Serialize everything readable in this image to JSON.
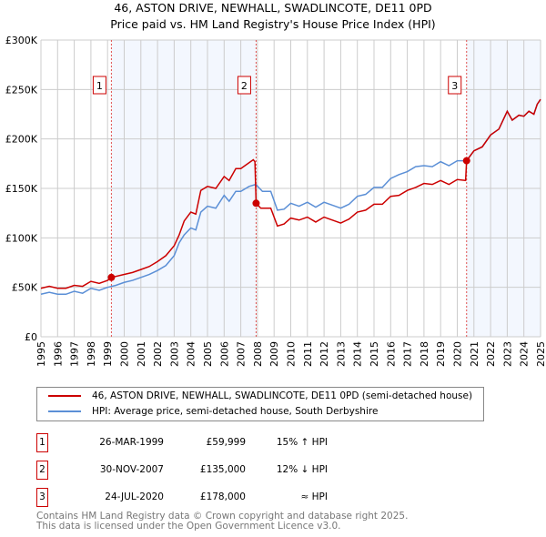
{
  "chart_data": {
    "type": "line",
    "title": "46, ASTON DRIVE, NEWHALL, SWADLINCOTE, DE11 0PD",
    "subtitle": "Price paid vs. HM Land Registry's House Price Index (HPI)",
    "xlim": [
      1995,
      2025
    ],
    "ylim": [
      0,
      300000
    ],
    "yticks": [
      {
        "v": 0,
        "label": "£0"
      },
      {
        "v": 50000,
        "label": "£50K"
      },
      {
        "v": 100000,
        "label": "£100K"
      },
      {
        "v": 150000,
        "label": "£150K"
      },
      {
        "v": 200000,
        "label": "£200K"
      },
      {
        "v": 250000,
        "label": "£250K"
      },
      {
        "v": 300000,
        "label": "£300K"
      }
    ],
    "xticks": [
      "1995",
      "1996",
      "1997",
      "1998",
      "1999",
      "2000",
      "2001",
      "2002",
      "2003",
      "2004",
      "2005",
      "2006",
      "2007",
      "2008",
      "2009",
      "2010",
      "2011",
      "2012",
      "2013",
      "2014",
      "2015",
      "2016",
      "2017",
      "2018",
      "2019",
      "2020",
      "2021",
      "2022",
      "2023",
      "2024",
      "2025"
    ],
    "grid": true,
    "series": [
      {
        "name": "46, ASTON DRIVE, NEWHALL, SWADLINCOTE, DE11 0PD (semi-detached house)",
        "color": "#cc0000",
        "points": [
          [
            1995,
            49000
          ],
          [
            1995.5,
            51000
          ],
          [
            1996,
            49000
          ],
          [
            1996.5,
            49000
          ],
          [
            1997,
            52000
          ],
          [
            1997.5,
            51000
          ],
          [
            1998,
            56000
          ],
          [
            1998.5,
            54000
          ],
          [
            1999,
            57000
          ],
          [
            1999.23,
            59999
          ],
          [
            2000,
            63000
          ],
          [
            2000.5,
            65000
          ],
          [
            2001,
            68000
          ],
          [
            2001.5,
            71000
          ],
          [
            2002,
            76000
          ],
          [
            2002.5,
            82000
          ],
          [
            2003,
            92000
          ],
          [
            2003.3,
            103000
          ],
          [
            2003.6,
            117000
          ],
          [
            2004,
            126000
          ],
          [
            2004.3,
            124000
          ],
          [
            2004.6,
            148000
          ],
          [
            2005,
            152000
          ],
          [
            2005.5,
            150000
          ],
          [
            2006,
            162000
          ],
          [
            2006.3,
            158000
          ],
          [
            2006.7,
            170000
          ],
          [
            2007,
            170000
          ],
          [
            2007.5,
            176000
          ],
          [
            2007.75,
            179000
          ],
          [
            2007.85,
            177000
          ],
          [
            2007.92,
            135000
          ],
          [
            2008.2,
            130000
          ],
          [
            2008.8,
            130000
          ],
          [
            2009.2,
            112000
          ],
          [
            2009.6,
            114000
          ],
          [
            2010,
            120000
          ],
          [
            2010.5,
            118000
          ],
          [
            2011,
            121000
          ],
          [
            2011.5,
            116000
          ],
          [
            2012,
            121000
          ],
          [
            2012.5,
            118000
          ],
          [
            2013,
            115000
          ],
          [
            2013.5,
            119000
          ],
          [
            2014,
            126000
          ],
          [
            2014.5,
            128000
          ],
          [
            2015,
            134000
          ],
          [
            2015.5,
            134000
          ],
          [
            2016,
            142000
          ],
          [
            2016.5,
            143000
          ],
          [
            2017,
            148000
          ],
          [
            2017.5,
            151000
          ],
          [
            2018,
            155000
          ],
          [
            2018.5,
            154000
          ],
          [
            2019,
            158000
          ],
          [
            2019.5,
            154000
          ],
          [
            2020,
            159000
          ],
          [
            2020.5,
            158000
          ],
          [
            2020.56,
            178000
          ],
          [
            2021,
            188000
          ],
          [
            2021.5,
            192000
          ],
          [
            2022,
            204000
          ],
          [
            2022.5,
            210000
          ],
          [
            2023,
            228000
          ],
          [
            2023.3,
            219000
          ],
          [
            2023.7,
            224000
          ],
          [
            2024,
            223000
          ],
          [
            2024.3,
            228000
          ],
          [
            2024.6,
            225000
          ],
          [
            2024.8,
            235000
          ],
          [
            2025,
            240000
          ]
        ]
      },
      {
        "name": "HPI: Average price, semi-detached house, South Derbyshire",
        "color": "#5b8fd6",
        "points": [
          [
            1995,
            43000
          ],
          [
            1995.5,
            45000
          ],
          [
            1996,
            43000
          ],
          [
            1996.5,
            43000
          ],
          [
            1997,
            46000
          ],
          [
            1997.5,
            44000
          ],
          [
            1998,
            49000
          ],
          [
            1998.5,
            47000
          ],
          [
            1999,
            50000
          ],
          [
            1999.5,
            52000
          ],
          [
            2000,
            55000
          ],
          [
            2000.5,
            57000
          ],
          [
            2001,
            60000
          ],
          [
            2001.5,
            63000
          ],
          [
            2002,
            67000
          ],
          [
            2002.5,
            72000
          ],
          [
            2003,
            82000
          ],
          [
            2003.3,
            95000
          ],
          [
            2003.6,
            103000
          ],
          [
            2004,
            110000
          ],
          [
            2004.3,
            108000
          ],
          [
            2004.6,
            126000
          ],
          [
            2005,
            132000
          ],
          [
            2005.5,
            130000
          ],
          [
            2006,
            143000
          ],
          [
            2006.3,
            137000
          ],
          [
            2006.7,
            147000
          ],
          [
            2007,
            147000
          ],
          [
            2007.5,
            152000
          ],
          [
            2007.9,
            154000
          ],
          [
            2008.3,
            147000
          ],
          [
            2008.8,
            147000
          ],
          [
            2009.2,
            128000
          ],
          [
            2009.6,
            129000
          ],
          [
            2010,
            135000
          ],
          [
            2010.5,
            132000
          ],
          [
            2011,
            136000
          ],
          [
            2011.5,
            131000
          ],
          [
            2012,
            136000
          ],
          [
            2012.5,
            133000
          ],
          [
            2013,
            130000
          ],
          [
            2013.5,
            134000
          ],
          [
            2014,
            142000
          ],
          [
            2014.5,
            144000
          ],
          [
            2015,
            151000
          ],
          [
            2015.5,
            151000
          ],
          [
            2016,
            160000
          ],
          [
            2016.5,
            164000
          ],
          [
            2017,
            167000
          ],
          [
            2017.5,
            172000
          ],
          [
            2018,
            173000
          ],
          [
            2018.5,
            172000
          ],
          [
            2019,
            177000
          ],
          [
            2019.5,
            173000
          ],
          [
            2020,
            178000
          ],
          [
            2020.56,
            178000
          ],
          [
            2021,
            188000
          ],
          [
            2021.5,
            192000
          ],
          [
            2022,
            204000
          ],
          [
            2022.5,
            210000
          ],
          [
            2023,
            228000
          ],
          [
            2023.3,
            219000
          ],
          [
            2023.7,
            224000
          ],
          [
            2024,
            223000
          ],
          [
            2024.3,
            228000
          ],
          [
            2024.6,
            225000
          ],
          [
            2024.8,
            235000
          ],
          [
            2025,
            240000
          ]
        ]
      }
    ],
    "sales": [
      {
        "n": "1",
        "x": 1999.23,
        "y": 59999
      },
      {
        "n": "2",
        "x": 2007.92,
        "y": 135000
      },
      {
        "n": "3",
        "x": 2020.56,
        "y": 178000
      }
    ],
    "legend_position": "bottom"
  },
  "legend": {
    "property": "46, ASTON DRIVE, NEWHALL, SWADLINCOTE, DE11 0PD (semi-detached house)",
    "hpi": "HPI: Average price, semi-detached house, South Derbyshire"
  },
  "table": [
    {
      "n": "1",
      "date": "26-MAR-1999",
      "price": "£59,999",
      "hpi": "15% ↑ HPI"
    },
    {
      "n": "2",
      "date": "30-NOV-2007",
      "price": "£135,000",
      "hpi": "12% ↓ HPI"
    },
    {
      "n": "3",
      "date": "24-JUL-2020",
      "price": "£178,000",
      "hpi": "≈ HPI"
    }
  ],
  "footer": {
    "line1": "Contains HM Land Registry data © Crown copyright and database right 2025.",
    "line2": "This data is licensed under the Open Government Licence v3.0."
  }
}
